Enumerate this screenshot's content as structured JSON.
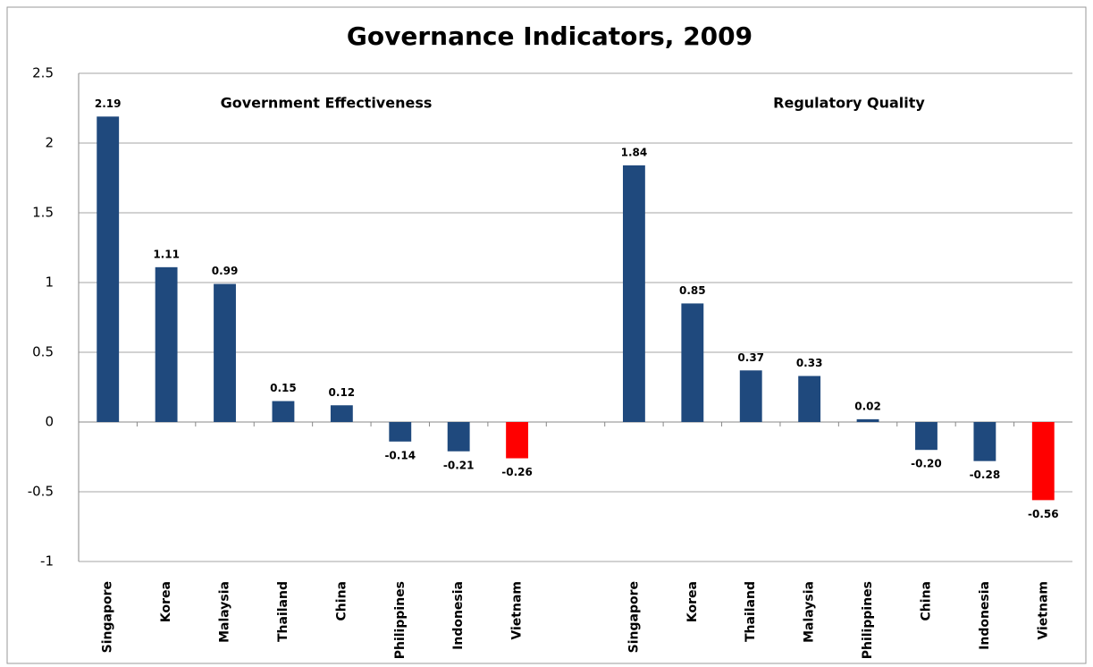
{
  "chart_data": {
    "type": "bar",
    "title": "Governance Indicators, 2009",
    "annotations": [
      "Government Effectiveness",
      "Regulatory Quality"
    ],
    "categories": [
      "Singapore",
      "Korea",
      "Malaysia",
      "Thailand",
      "China",
      "Philippines",
      "Indonesia",
      "Vietnam",
      null,
      "Singapore",
      "Korea",
      "Thailand",
      "Malaysia",
      "Philippines",
      "China",
      "Indonesia",
      "Vietnam"
    ],
    "values": [
      2.19,
      1.11,
      0.99,
      0.15,
      0.12,
      -0.14,
      -0.21,
      -0.26,
      null,
      1.84,
      0.85,
      0.37,
      0.33,
      0.02,
      -0.2,
      -0.28,
      -0.56
    ],
    "value_labels": [
      "2.19",
      "1.11",
      "0.99",
      "0.15",
      "0.12",
      "-0.14",
      "-0.21",
      "-0.26",
      null,
      "1.84",
      "0.85",
      "0.37",
      "0.33",
      "0.02",
      "-0.20",
      "-0.28",
      "-0.56"
    ],
    "colors": [
      "#1f497d",
      "#1f497d",
      "#1f497d",
      "#1f497d",
      "#1f497d",
      "#1f497d",
      "#1f497d",
      "#ff0000",
      null,
      "#1f497d",
      "#1f497d",
      "#1f497d",
      "#1f497d",
      "#1f497d",
      "#1f497d",
      "#1f497d",
      "#ff0000"
    ],
    "ylim": [
      -1,
      2.5
    ],
    "yticks": [
      -1,
      -0.5,
      0,
      0.5,
      1,
      1.5,
      2,
      2.5
    ],
    "grid": true
  }
}
